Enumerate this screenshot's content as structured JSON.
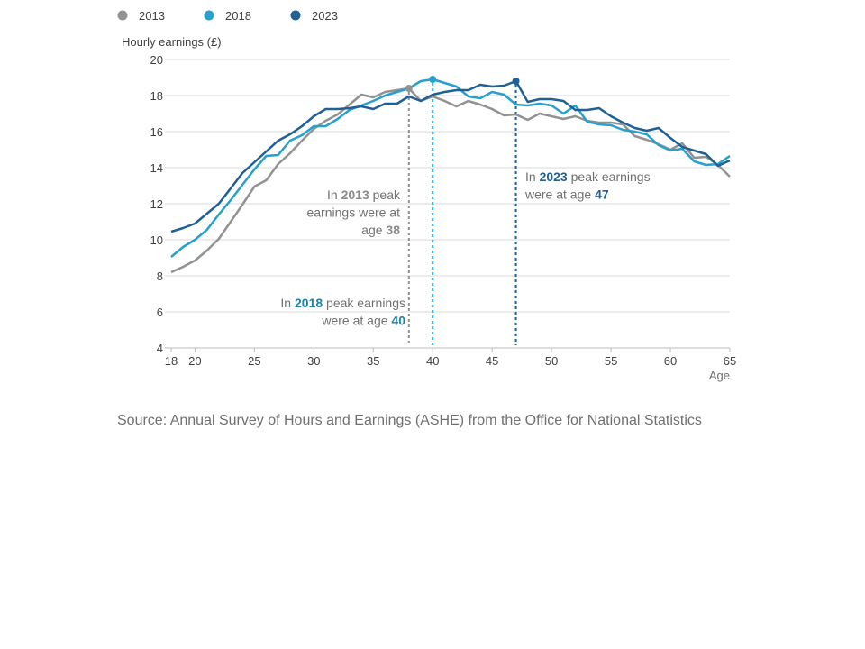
{
  "source": "Source: Annual Survey of Hours and Earnings (ASHE) from the Office for National Statistics",
  "chart_data": {
    "type": "line",
    "ylabel": "Hourly earnings (£)",
    "xlabel": "Age",
    "xlim": [
      18,
      65
    ],
    "ylim": [
      4,
      20
    ],
    "x_ticks": [
      18,
      20,
      25,
      30,
      35,
      40,
      45,
      50,
      55,
      60,
      65
    ],
    "y_ticks": [
      4,
      6,
      8,
      10,
      12,
      14,
      16,
      18,
      20
    ],
    "grid": true,
    "legend_position": "top-left",
    "x": [
      18,
      19,
      20,
      21,
      22,
      23,
      24,
      25,
      26,
      27,
      28,
      29,
      30,
      31,
      32,
      33,
      34,
      35,
      36,
      37,
      38,
      39,
      40,
      41,
      42,
      43,
      44,
      45,
      46,
      47,
      48,
      49,
      50,
      51,
      52,
      53,
      54,
      55,
      56,
      57,
      58,
      59,
      60,
      61,
      62,
      63,
      64,
      65
    ],
    "series": [
      {
        "name": "2013",
        "color": "#929292",
        "values": [
          8.2,
          8.5,
          8.85,
          9.4,
          10.05,
          11.0,
          11.95,
          12.95,
          13.3,
          14.2,
          14.8,
          15.5,
          16.15,
          16.6,
          16.95,
          17.5,
          18.05,
          17.9,
          18.2,
          18.3,
          18.4,
          17.7,
          17.95,
          17.7,
          17.4,
          17.7,
          17.5,
          17.25,
          16.9,
          16.95,
          16.65,
          17.0,
          16.85,
          16.7,
          16.85,
          16.6,
          16.5,
          16.5,
          16.4,
          15.75,
          15.55,
          15.3,
          15.0,
          15.35,
          14.55,
          14.6,
          14.15,
          13.5
        ]
      },
      {
        "name": "2018",
        "color": "#27a0cc",
        "values": [
          9.05,
          9.6,
          10.0,
          10.55,
          11.4,
          12.2,
          13.05,
          13.9,
          14.65,
          14.7,
          15.5,
          15.8,
          16.3,
          16.3,
          16.7,
          17.2,
          17.45,
          17.7,
          18.0,
          18.2,
          18.4,
          18.8,
          18.9,
          18.7,
          18.5,
          17.95,
          17.85,
          18.2,
          18.05,
          17.5,
          17.45,
          17.55,
          17.45,
          17.0,
          17.45,
          16.55,
          16.4,
          16.35,
          16.1,
          16.0,
          15.85,
          15.25,
          14.95,
          15.05,
          14.35,
          14.15,
          14.2,
          14.65
        ]
      },
      {
        "name": "2023",
        "color": "#206095",
        "values": [
          10.45,
          10.65,
          10.9,
          11.45,
          12.0,
          12.85,
          13.7,
          14.3,
          14.9,
          15.5,
          15.85,
          16.3,
          16.85,
          17.25,
          17.25,
          17.3,
          17.4,
          17.25,
          17.55,
          17.55,
          17.95,
          17.7,
          18.05,
          18.2,
          18.3,
          18.3,
          18.6,
          18.5,
          18.55,
          18.8,
          17.65,
          17.8,
          17.8,
          17.7,
          17.2,
          17.2,
          17.3,
          16.85,
          16.5,
          16.2,
          16.05,
          16.2,
          15.65,
          15.15,
          14.95,
          14.75,
          14.1,
          14.4
        ]
      }
    ],
    "peaks": [
      {
        "series": "2013",
        "age": 38,
        "value": 18.4
      },
      {
        "series": "2018",
        "age": 40,
        "value": 18.9
      },
      {
        "series": "2023",
        "age": 47,
        "value": 18.8
      }
    ],
    "annotations": [
      {
        "id": "a2013",
        "lines": [
          [
            "In ",
            "2013",
            " peak"
          ],
          [
            "earnings were at"
          ],
          [
            "age ",
            "38"
          ]
        ]
      },
      {
        "id": "a2018",
        "lines": [
          [
            "In ",
            "2018",
            " peak earnings"
          ],
          [
            "were at age ",
            "40"
          ]
        ]
      },
      {
        "id": "a2023",
        "lines": [
          [
            "In ",
            "2023",
            " peak earnings"
          ],
          [
            "were at age ",
            "47"
          ]
        ]
      }
    ]
  }
}
